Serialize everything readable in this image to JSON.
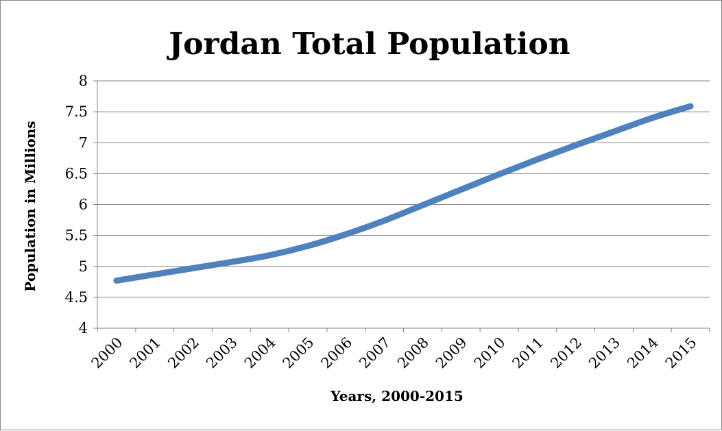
{
  "chart_data": {
    "type": "line",
    "title": "Jordan Total Population",
    "xlabel": "Years, 2000-2015",
    "ylabel": "Population in Millions",
    "categories": [
      "2000",
      "2001",
      "2002",
      "2003",
      "2004",
      "2005",
      "2006",
      "2007",
      "2008",
      "2009",
      "2010",
      "2011",
      "2012",
      "2013",
      "2014",
      "2015"
    ],
    "series": [
      {
        "values": [
          4.77,
          4.87,
          4.97,
          5.07,
          5.18,
          5.33,
          5.52,
          5.74,
          5.99,
          6.24,
          6.49,
          6.73,
          6.96,
          7.18,
          7.4,
          7.59
        ],
        "color": "#4F81BD"
      }
    ],
    "ylim": [
      4,
      8
    ],
    "yticks": [
      "4",
      "4.5",
      "5",
      "5.5",
      "6",
      "6.5",
      "7",
      "7.5",
      "8"
    ],
    "grid": true,
    "legend": "none"
  }
}
